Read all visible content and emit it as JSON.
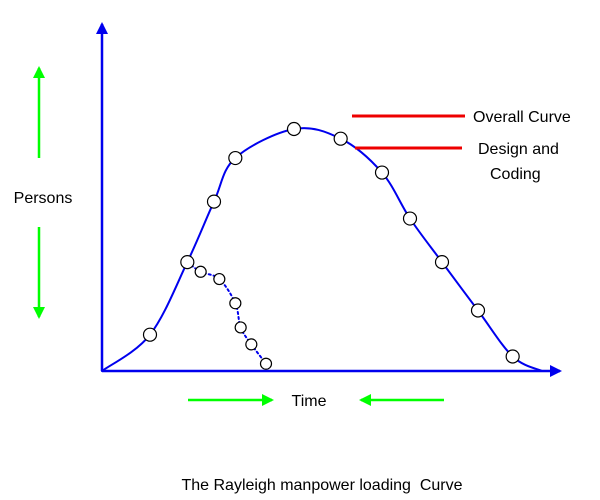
{
  "chart_data": {
    "type": "line",
    "title": "The Rayleigh manpower loading  Curve",
    "xlabel": "Time",
    "ylabel": "Persons",
    "ticks": false,
    "grid": false,
    "legend_position": "top-right",
    "series": [
      {
        "name": "Overall Curve",
        "color": "#0000ee",
        "line_style": "solid",
        "marker": "circle",
        "points": [
          [
            0,
            0
          ],
          [
            3.6,
            1.5
          ],
          [
            6.4,
            4.5
          ],
          [
            8.4,
            7.0
          ],
          [
            10.0,
            8.8
          ],
          [
            14.4,
            10.0
          ],
          [
            17.9,
            9.6
          ],
          [
            21.0,
            8.2
          ],
          [
            23.1,
            6.3
          ],
          [
            25.5,
            4.5
          ],
          [
            28.2,
            2.5
          ],
          [
            30.8,
            0.6
          ],
          [
            33.0,
            0
          ]
        ]
      },
      {
        "name": "Design and\nCoding",
        "color": "#0000ee",
        "line_style": "dotted",
        "marker": "circle",
        "points": [
          [
            6.4,
            4.5
          ],
          [
            7.4,
            4.1
          ],
          [
            8.8,
            3.8
          ],
          [
            10.0,
            2.8
          ],
          [
            10.4,
            1.8
          ],
          [
            11.2,
            1.1
          ],
          [
            12.3,
            0.3
          ]
        ]
      }
    ],
    "legend_color": "#ee0000",
    "axis_color": "#0000ee",
    "arrow_color": "#00ff00"
  }
}
